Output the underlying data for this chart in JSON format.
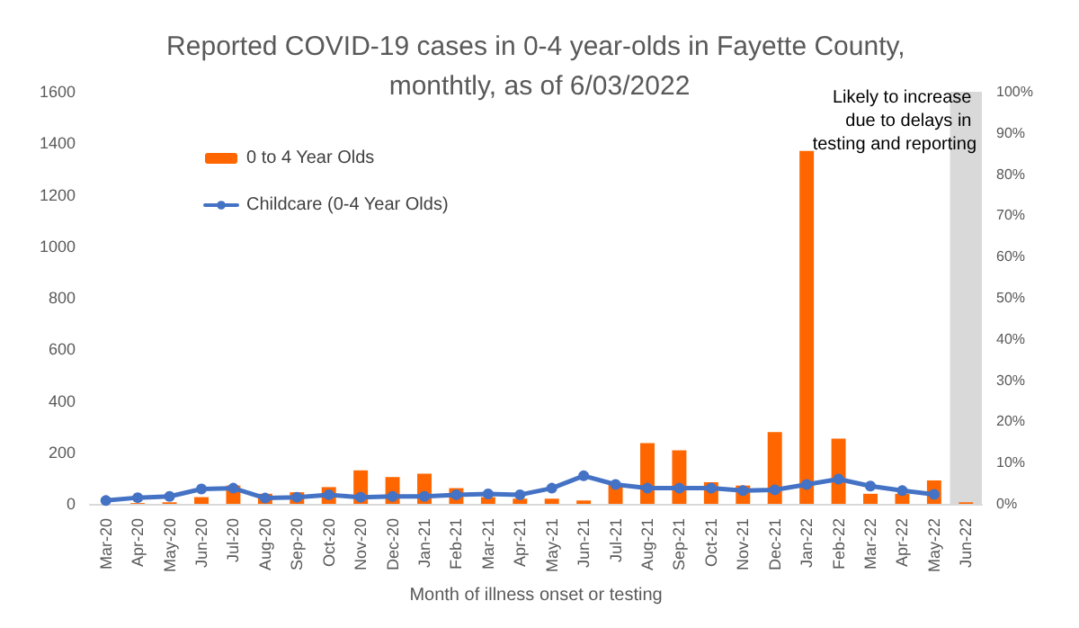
{
  "chart_data": {
    "type": "bar",
    "title": "Reported COVID-19 cases in 0-4 year-olds in Fayette County, monthtly, as of 6/03/2022",
    "xlabel": "Month of illness onset or testing",
    "categories": [
      "Mar-20",
      "Apr-20",
      "May-20",
      "Jun-20",
      "Jul-20",
      "Aug-20",
      "Sep-20",
      "Oct-20",
      "Nov-20",
      "Dec-20",
      "Jan-21",
      "Feb-21",
      "Mar-21",
      "Apr-21",
      "May-21",
      "Jun-21",
      "Jul-21",
      "Aug-21",
      "Sep-21",
      "Oct-21",
      "Nov-21",
      "Dec-21",
      "Jan-22",
      "Feb-22",
      "Mar-22",
      "Apr-22",
      "May-22",
      "Jun-22"
    ],
    "series": [
      {
        "name": "0 to 4 Year Olds",
        "color": "#ff6600",
        "values": [
          null,
          3,
          6,
          26,
          71,
          39,
          45,
          65,
          130,
          104,
          117,
          61,
          26,
          20,
          20,
          13,
          76,
          236,
          208,
          84,
          71,
          279,
          1370,
          253,
          39,
          39,
          91,
          6
        ]
      },
      {
        "name": "Childcare (0-4 Year Olds)",
        "type": "line",
        "axis": "y2",
        "color": "#4472c4",
        "values": [
          0.8,
          1.5,
          1.8,
          3.6,
          3.8,
          1.4,
          1.6,
          2.2,
          1.6,
          1.8,
          1.8,
          2.2,
          2.4,
          2.2,
          3.8,
          6.8,
          4.7,
          3.8,
          3.8,
          3.8,
          3.2,
          3.4,
          4.7,
          6,
          4.3,
          3.2,
          2.3,
          null
        ]
      }
    ],
    "ylim": [
      0,
      1600
    ],
    "yticks": [
      0,
      200,
      400,
      600,
      800,
      1000,
      1200,
      1400,
      1600
    ],
    "y2lim": [
      0,
      100
    ],
    "y2ticks": [
      {
        "value": 0,
        "label": "0%"
      },
      {
        "value": 10,
        "label": "10%"
      },
      {
        "value": 20,
        "label": "20%"
      },
      {
        "value": 30,
        "label": "30%"
      },
      {
        "value": 40,
        "label": "40%"
      },
      {
        "value": 50,
        "label": "50%"
      },
      {
        "value": 60,
        "label": "60%"
      },
      {
        "value": 70,
        "label": "70%"
      },
      {
        "value": 80,
        "label": "80%"
      },
      {
        "value": 90,
        "label": "90%"
      },
      {
        "value": 100,
        "label": "100%"
      }
    ],
    "bands": [
      {
        "axis": "x",
        "from": "Jun-22",
        "to": "Jun-22",
        "label": "Likely to increase due to delays in testing and reporting",
        "color": "#d9d9d9"
      }
    ],
    "legend": "top left",
    "grid": false,
    "marker": "circle",
    "line_style": "solid"
  }
}
